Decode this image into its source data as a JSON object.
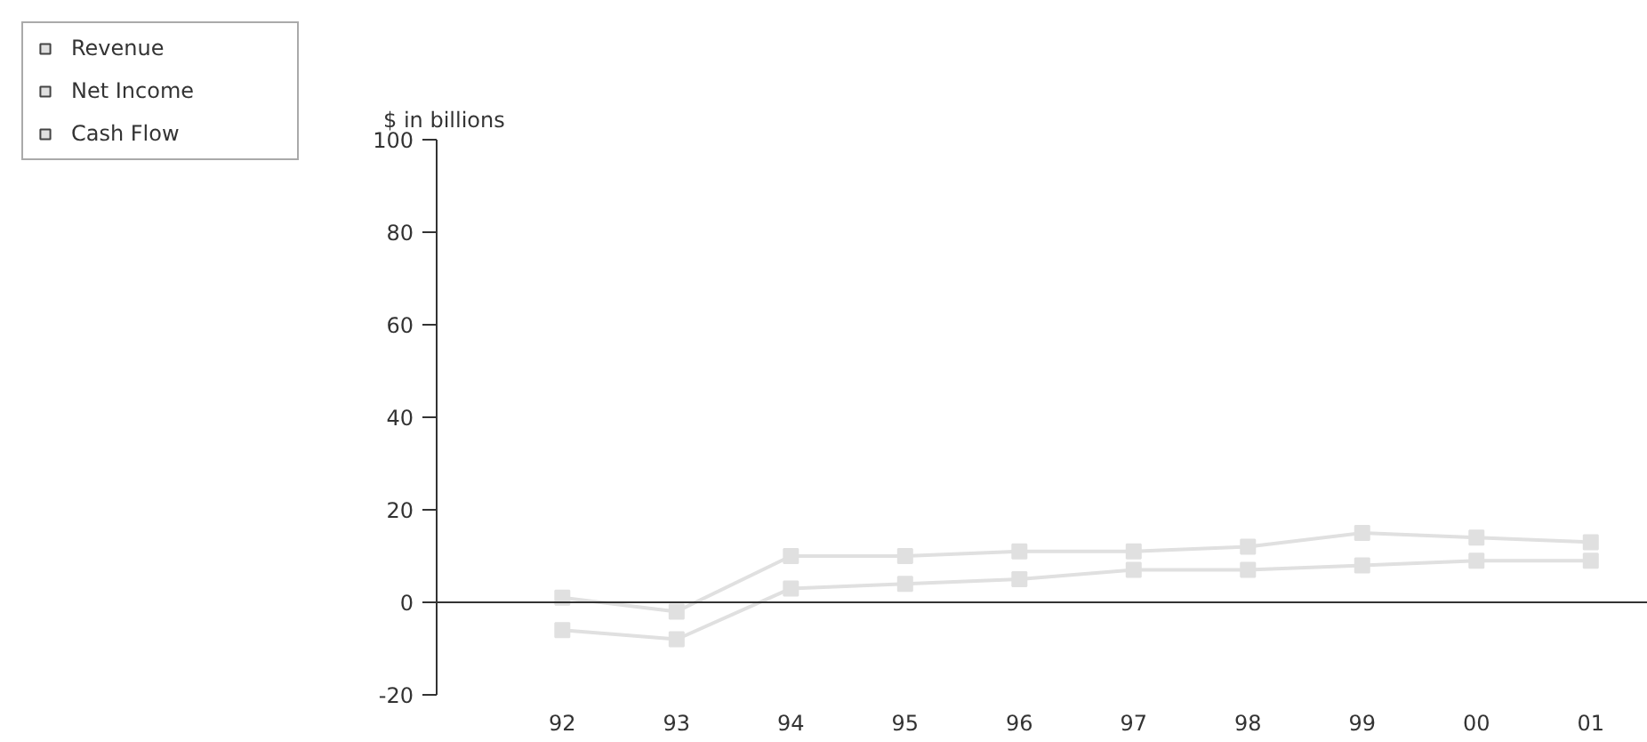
{
  "chart_data": {
    "type": "line",
    "ylabel": "$ in billions",
    "categories": [
      "92",
      "93",
      "94",
      "95",
      "96",
      "97",
      "98",
      "99",
      "00",
      "01"
    ],
    "ylim": [
      -20,
      100
    ],
    "yticks": [
      -20,
      0,
      20,
      40,
      60,
      80,
      100
    ],
    "marker": "square",
    "legend": "top left",
    "ref_lines": [
      {
        "axis": "y",
        "value": 0,
        "color": "#333333"
      }
    ],
    "series": [
      {
        "name": "Revenue",
        "color": "#e0e0e0",
        "values": [
          null,
          null,
          null,
          null,
          null,
          null,
          null,
          null,
          null,
          null
        ]
      },
      {
        "name": "Net Income",
        "color": "#e0e0e0",
        "values": [
          -6,
          -8,
          3,
          4,
          5,
          7,
          7,
          8,
          9,
          9
        ]
      },
      {
        "name": "Cash Flow",
        "color": "#e0e0e0",
        "values": [
          1,
          -2,
          10,
          10,
          11,
          11,
          12,
          15,
          14,
          13
        ]
      }
    ]
  }
}
